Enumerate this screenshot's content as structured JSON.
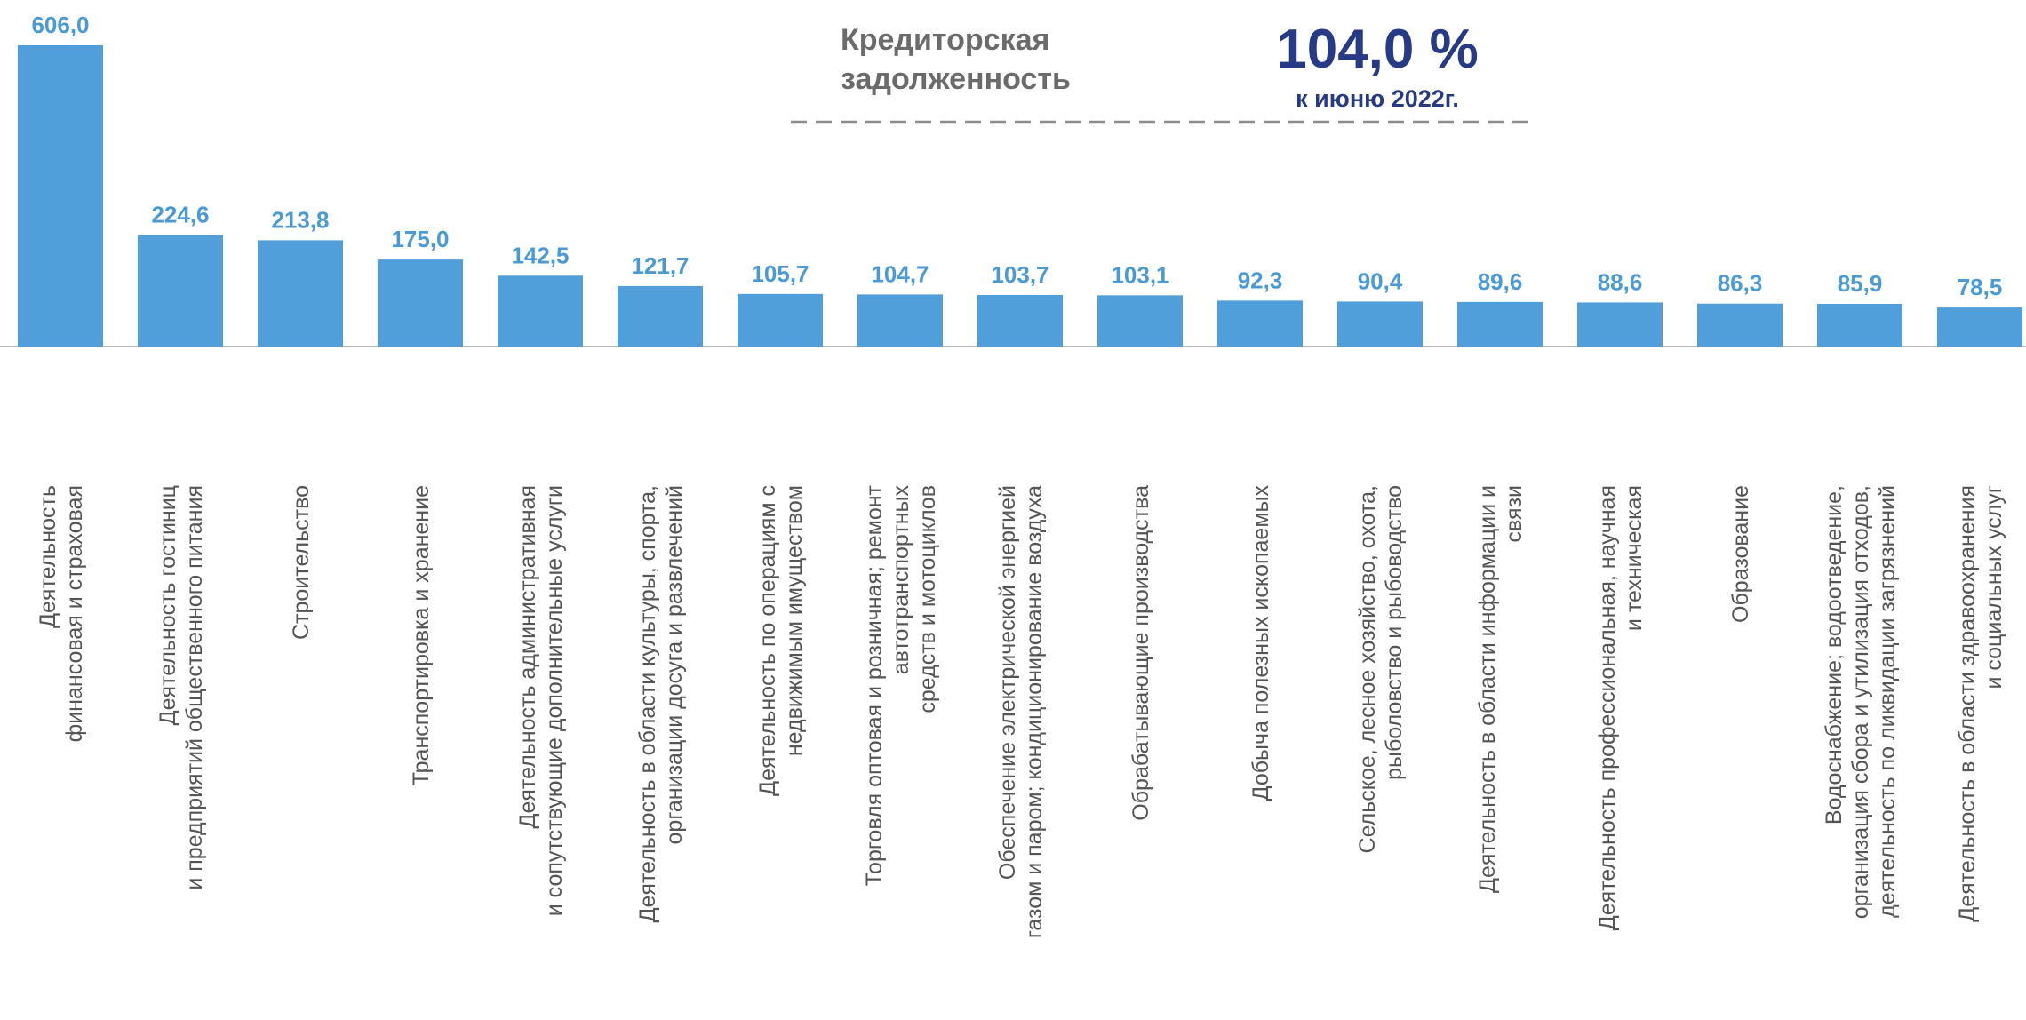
{
  "chart_data": {
    "type": "bar",
    "annotations": {
      "heading": "Кредиторская\nзадолженность",
      "headline_value": "104,0 %",
      "headline_note": "к июню 2022г."
    },
    "categories": [
      "Деятельность\nфинансовая и страховая",
      "Деятельность гостиниц\nи предприятий общественного питания",
      "Строительство",
      "Транспортировка и хранение",
      "Деятельность административная\nи сопутствующие дополнительные услуги",
      "Деятельность в области культуры, спорта,\nорганизации досуга и развлечений",
      "Деятельность  по операциям с\nнедвижимым имуществом",
      "Торговля оптовая и розничная; ремонт\nавтотранспортных\nсредств и мотоциклов",
      "Обеспечение электрической энергией\nгазом и паром; кондиционирование воздуха",
      "Обрабатывающие производства",
      "Добыча полезных ископаемых",
      "Сельское, лесное хозяйство, охота,\nрыболовство и рыбоводство",
      "Деятельность в области информации и\nсвязи",
      "Деятельность профессиональная, научная\nи техническая",
      "Образование",
      "Водоснабжение; водоотведение,\nорганизация сбора и утилизация отходов,\nдеятельность по ликвидации загрязнений",
      "Деятельность в области здравоохранения\nи социальных услуг"
    ],
    "values": [
      606.0,
      224.6,
      213.8,
      175.0,
      142.5,
      121.7,
      105.7,
      104.7,
      103.7,
      103.1,
      92.3,
      90.4,
      89.6,
      88.6,
      86.3,
      85.9,
      78.5
    ],
    "value_labels": [
      "606,0",
      "224,6",
      "213,8",
      "175,0",
      "142,5",
      "121,7",
      "105,7",
      "104,7",
      "103,7",
      "103,1",
      "92,3",
      "90,4",
      "89,6",
      "88,6",
      "86,3",
      "85,9",
      "78,5"
    ],
    "color": "#509fdb",
    "label_color": "#4a9ad6"
  }
}
